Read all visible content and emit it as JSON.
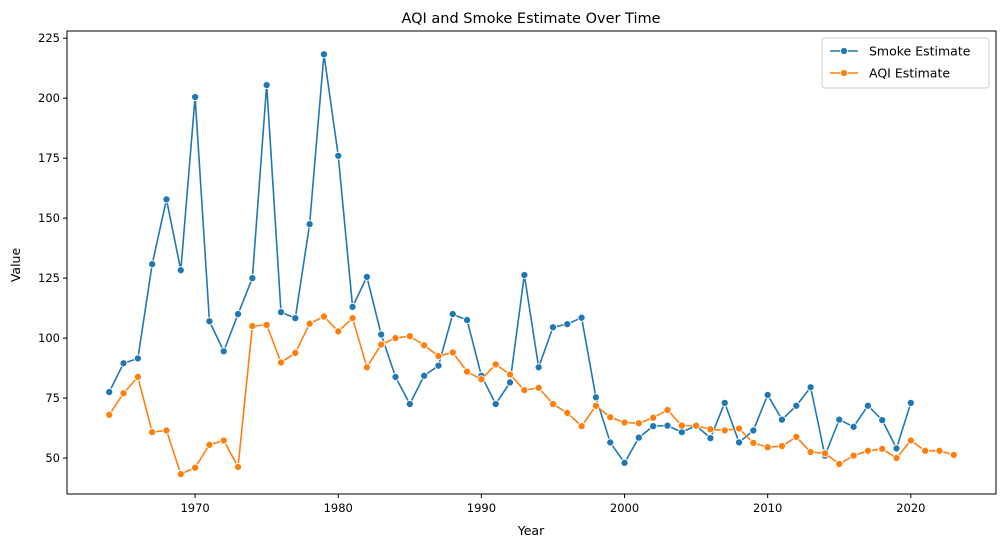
{
  "chart_data": {
    "type": "line",
    "title": "AQI and Smoke Estimate Over Time",
    "xlabel": "Year",
    "ylabel": "Value",
    "xlim": [
      1961.05,
      1925.95
    ],
    "ylim": [
      35,
      228
    ],
    "xticks": [
      1970,
      1980,
      1990,
      2000,
      2010,
      2020
    ],
    "yticks": [
      50,
      75,
      100,
      125,
      150,
      175,
      200,
      225
    ],
    "legend": {
      "position": "top-right"
    },
    "series": [
      {
        "name": "Smoke Estimate",
        "color": "#1f77b4",
        "marker": "circle",
        "x": [
          1964,
          1965,
          1966,
          1967,
          1968,
          1969,
          1970,
          1971,
          1972,
          1973,
          1974,
          1975,
          1976,
          1977,
          1978,
          1979,
          1980,
          1981,
          1982,
          1983,
          1984,
          1985,
          1986,
          1987,
          1988,
          1989,
          1990,
          1991,
          1992,
          1993,
          1994,
          1995,
          1996,
          1997,
          1998,
          1999,
          2000,
          2001,
          2002,
          2003,
          2004,
          2005,
          2006,
          2007,
          2008,
          2009,
          2010,
          2011,
          2012,
          2013,
          2014,
          2015,
          2016,
          2017,
          2018,
          2019,
          2020
        ],
        "y": [
          77.5,
          89.5,
          91.5,
          130.8,
          157.8,
          128.3,
          200.5,
          107.0,
          94.5,
          110.0,
          125.0,
          205.5,
          110.8,
          108.3,
          147.5,
          218.3,
          176.0,
          113.0,
          125.5,
          101.5,
          83.8,
          72.5,
          84.3,
          88.5,
          110.0,
          107.5,
          84.3,
          72.5,
          81.5,
          126.3,
          87.8,
          104.5,
          105.8,
          108.5,
          75.3,
          56.5,
          48.0,
          58.5,
          63.3,
          63.5,
          60.8,
          63.5,
          58.3,
          73.0,
          56.5,
          61.5,
          76.3,
          66.0,
          71.8,
          79.5,
          51.0,
          66.0,
          63.0,
          71.8,
          65.8,
          54.0,
          73.0
        ]
      },
      {
        "name": "AQI Estimate",
        "color": "#ff7f0e",
        "marker": "circle",
        "x": [
          1964,
          1965,
          1966,
          1967,
          1968,
          1969,
          1970,
          1971,
          1972,
          1973,
          1974,
          1975,
          1976,
          1977,
          1978,
          1979,
          1980,
          1981,
          1982,
          1983,
          1984,
          1985,
          1986,
          1987,
          1988,
          1989,
          1990,
          1991,
          1992,
          1993,
          1994,
          1995,
          1996,
          1997,
          1998,
          1999,
          2000,
          2001,
          2002,
          2003,
          2004,
          2005,
          2006,
          2007,
          2008,
          2009,
          2010,
          2011,
          2012,
          2013,
          2014,
          2015,
          2016,
          2017,
          2018,
          2019,
          2020,
          2021,
          2022,
          2023
        ],
        "y": [
          68.0,
          77.0,
          83.8,
          60.8,
          61.5,
          43.3,
          46.0,
          55.5,
          57.3,
          46.3,
          105.0,
          105.5,
          89.8,
          93.8,
          106.0,
          109.0,
          102.8,
          108.3,
          87.8,
          97.3,
          100.0,
          100.8,
          97.0,
          92.5,
          94.0,
          86.0,
          82.8,
          89.0,
          84.8,
          78.3,
          79.3,
          72.5,
          68.8,
          63.3,
          71.8,
          67.0,
          64.8,
          64.5,
          66.8,
          70.0,
          63.5,
          63.5,
          62.0,
          61.5,
          62.3,
          56.3,
          54.5,
          55.0,
          58.8,
          52.5,
          52.0,
          47.5,
          51.0,
          53.0,
          53.8,
          50.0,
          57.3,
          53.0,
          53.0,
          51.3
        ]
      }
    ]
  }
}
